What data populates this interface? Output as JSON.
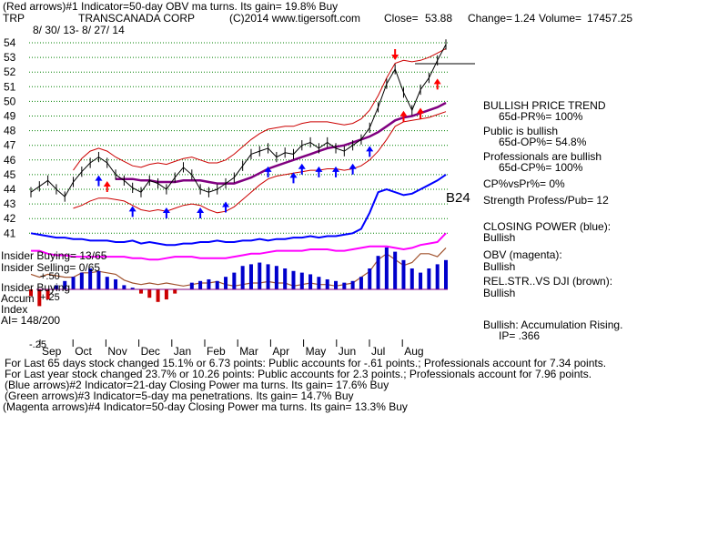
{
  "header": {
    "line1": "(Red arrows)#1 Indicator=50-day OBV ma turns. Its gain= 19.8% Buy",
    "ticker": "TRP",
    "company": "TRANSCANADA CORP",
    "copyright": "(C)2014 www.tigersoft.com",
    "close_label": "Close=",
    "close_value": "53.88",
    "change_label": "Change=",
    "change_value": "1.24",
    "volume_label": "Volume=",
    "volume_value": "17457.25",
    "date_range": "8/ 30/ 13- 8/ 27/ 14"
  },
  "right_panel": {
    "trend_title": "BULLISH PRICE TREND",
    "trend_value": "65d-PR%= 100%",
    "public_title": "Public is bullish",
    "public_value": "65d-OP%= 54.8%",
    "pros_title": "Professionals are bullish",
    "pros_value": "65d-CP%= 100%",
    "cpvspr": "CP%vsPr%= 0%",
    "strength": "Strength Profess/Pub= 12",
    "b24": "B24",
    "closing_power_title": "CLOSING POWER (blue):",
    "closing_power_value": "Bullish",
    "obv_title": "OBV (magenta):",
    "obv_value": "Bullish",
    "relstr_title": "REL.STR..VS DJI (brown):",
    "relstr_value": "Bullish",
    "accum_title": "Bullish: Accumulation Rising.",
    "ip": "IP= .366"
  },
  "left_labels": {
    "insider_buying": "Insider Buying= 13/65",
    "insider_selling": "Insider Selling= 0/65",
    "insider_buying2": "Insider Buying",
    "plus50": "+.50",
    "accum": "Accum",
    "plus25": "+.25",
    "index": "Index",
    "ai": "AI= 148/200",
    "minus25": "-.25"
  },
  "footer": {
    "line1": "For Last 65 days stock changed  15.1% or  6.73 points:  Public accounts for -.61 points.;  Professionals account for  7.34 points.",
    "line2": "For Last year stock changed  23.7% or  10.26 points:  Public accounts for  2.3 points.;  Professionals account for  7.96 points.",
    "line3": "(Blue arrows)#2 Indicator=21-day Closing Power ma turns. Its gain= 17.6% Buy",
    "line4": "(Green arrows)#3 Indicator=5-day ma penetrations. Its gain= 14.7% Buy",
    "line5": "(Magenta arrows)#4 Indicator=50-day Closing Power ma turns. Its gain= 13.3% Buy"
  },
  "colors": {
    "price": "#000000",
    "band": "#cc0000",
    "ma50": "#800080",
    "closing_power": "#0000ff",
    "obv": "#ff00ff",
    "relstr": "#a0522d",
    "grid": "#008000",
    "accum_pos": "#0000cc",
    "accum_neg": "#cc0000",
    "arrow_blue": "#0000ff",
    "arrow_red": "#ff0000"
  },
  "chart_data": {
    "type": "line",
    "price_axis_ticks": [
      41,
      42,
      43,
      44,
      45,
      46,
      47,
      48,
      49,
      50,
      51,
      52,
      53,
      54
    ],
    "ylim": [
      40.5,
      54
    ],
    "months": [
      "Sep",
      "Oct",
      "Nov",
      "Dec",
      "Jan",
      "Feb",
      "Mar",
      "Apr",
      "May",
      "Jun",
      "Jul",
      "Aug"
    ],
    "series": [
      {
        "name": "Price",
        "key": "price",
        "values": [
          43.8,
          44.2,
          44.6,
          44.0,
          43.5,
          44.5,
          45.2,
          45.8,
          46.2,
          45.8,
          45.0,
          44.6,
          44.1,
          43.8,
          44.6,
          44.4,
          44.0,
          44.8,
          45.5,
          45.0,
          44.0,
          43.8,
          44.0,
          44.4,
          44.8,
          45.6,
          46.4,
          46.6,
          46.8,
          46.2,
          46.5,
          46.4,
          47.0,
          47.2,
          46.8,
          47.2,
          46.8,
          46.6,
          47.0,
          47.4,
          48.2,
          49.6,
          51.2,
          52.2,
          50.6,
          49.4,
          50.8,
          51.6,
          52.8,
          53.88
        ]
      },
      {
        "name": "50-day MA",
        "key": "ma50",
        "values": [
          null,
          null,
          null,
          null,
          null,
          null,
          null,
          null,
          null,
          null,
          44.7,
          44.7,
          44.7,
          44.6,
          44.6,
          44.5,
          44.5,
          44.5,
          44.6,
          44.6,
          44.6,
          44.5,
          44.4,
          44.4,
          44.4,
          44.6,
          44.8,
          45.1,
          45.4,
          45.6,
          45.8,
          46.0,
          46.2,
          46.4,
          46.6,
          46.8,
          46.9,
          47.0,
          47.2,
          47.4,
          47.6,
          47.9,
          48.3,
          48.7,
          48.9,
          49.0,
          49.2,
          49.4,
          49.6,
          49.9
        ]
      },
      {
        "name": "Upper band",
        "key": "upper",
        "values": [
          null,
          null,
          null,
          null,
          null,
          45.3,
          46.1,
          46.6,
          46.8,
          46.6,
          46.2,
          45.9,
          45.6,
          45.5,
          45.7,
          45.8,
          45.7,
          45.9,
          46.1,
          46.2,
          46.0,
          45.8,
          45.8,
          46.0,
          46.4,
          46.9,
          47.4,
          47.8,
          48.1,
          48.2,
          48.3,
          48.3,
          48.5,
          48.6,
          48.6,
          48.6,
          48.5,
          48.4,
          48.5,
          48.8,
          49.4,
          50.4,
          51.6,
          52.6,
          52.8,
          52.7,
          52.8,
          53.0,
          53.3,
          53.6
        ]
      },
      {
        "name": "Lower band",
        "key": "lower",
        "values": [
          null,
          null,
          null,
          null,
          null,
          42.7,
          42.9,
          43.2,
          43.4,
          43.4,
          43.3,
          43.2,
          42.9,
          42.6,
          42.5,
          42.6,
          42.5,
          42.7,
          42.9,
          43.0,
          42.9,
          42.6,
          42.4,
          42.5,
          42.8,
          43.3,
          43.8,
          44.3,
          44.7,
          44.9,
          45.0,
          45.1,
          45.2,
          45.3,
          45.3,
          45.4,
          45.4,
          45.3,
          45.4,
          45.6,
          46.0,
          46.6,
          47.4,
          48.3,
          48.6,
          48.7,
          48.8,
          48.9,
          49.1,
          49.3
        ]
      },
      {
        "name": "Closing Power",
        "key": "cp",
        "values": [
          41.0,
          40.9,
          40.8,
          40.7,
          40.7,
          40.6,
          40.6,
          40.5,
          40.5,
          40.5,
          40.4,
          40.4,
          40.5,
          40.3,
          40.4,
          40.3,
          40.2,
          40.2,
          40.3,
          40.3,
          40.4,
          40.4,
          40.5,
          40.4,
          40.4,
          40.5,
          40.5,
          40.6,
          40.5,
          40.6,
          40.6,
          40.7,
          40.7,
          40.8,
          40.7,
          40.8,
          40.8,
          40.9,
          41.0,
          41.3,
          42.4,
          43.8,
          44.0,
          43.8,
          43.6,
          43.7,
          44.0,
          44.3,
          44.6,
          45.0
        ]
      },
      {
        "name": "OBV",
        "key": "obv",
        "values": [
          39.8,
          39.8,
          39.6,
          39.5,
          39.5,
          39.4,
          39.4,
          39.4,
          39.4,
          39.4,
          39.4,
          39.4,
          39.3,
          39.3,
          39.2,
          39.2,
          39.3,
          39.4,
          39.4,
          39.4,
          39.3,
          39.3,
          39.3,
          39.3,
          39.4,
          39.5,
          39.6,
          39.6,
          39.7,
          39.8,
          39.8,
          39.8,
          39.8,
          39.9,
          39.9,
          39.9,
          39.8,
          39.8,
          39.9,
          40.0,
          40.1,
          40.1,
          40.1,
          40.0,
          39.9,
          40.0,
          40.2,
          40.3,
          40.4,
          41.0
        ]
      },
      {
        "name": "Rel.Str vs DJI",
        "key": "relstr",
        "values": [
          38.2,
          38.0,
          38.2,
          38.1,
          38.0,
          38.0,
          38.3,
          38.3,
          38.4,
          38.3,
          38.2,
          37.8,
          37.6,
          37.5,
          37.6,
          37.5,
          37.6,
          37.5,
          37.4,
          37.5,
          37.6,
          37.6,
          37.7,
          37.5,
          37.4,
          37.5,
          37.6,
          37.6,
          37.7,
          37.6,
          37.6,
          37.4,
          37.5,
          37.6,
          37.5,
          37.5,
          37.4,
          37.5,
          37.6,
          38.0,
          38.4,
          39.2,
          39.6,
          39.2,
          38.8,
          39.0,
          39.6,
          39.6,
          39.4,
          40.0
        ]
      },
      {
        "name": "Accumulation Index",
        "key": "accum",
        "values": [
          -0.08,
          -0.2,
          -0.12,
          0.05,
          0.1,
          0.15,
          0.2,
          0.25,
          0.22,
          0.15,
          0.12,
          0.05,
          0.02,
          -0.05,
          -0.1,
          -0.15,
          -0.12,
          -0.05,
          0.0,
          0.08,
          0.1,
          0.12,
          0.1,
          0.15,
          0.2,
          0.28,
          0.3,
          0.32,
          0.3,
          0.28,
          0.25,
          0.22,
          0.2,
          0.18,
          0.15,
          0.12,
          0.1,
          0.08,
          0.1,
          0.15,
          0.25,
          0.4,
          0.5,
          0.45,
          0.35,
          0.25,
          0.2,
          0.25,
          0.3,
          0.35
        ]
      }
    ],
    "accum_axis_ticks": [
      "+.50",
      "+.25",
      "-.25"
    ],
    "buy_arrows_blue": [
      8,
      12,
      16,
      20,
      23,
      28,
      31,
      32,
      34,
      36,
      38,
      40
    ],
    "buy_arrows_red": [
      9,
      44,
      46,
      48
    ],
    "sell_arrows_red": [
      43
    ]
  }
}
